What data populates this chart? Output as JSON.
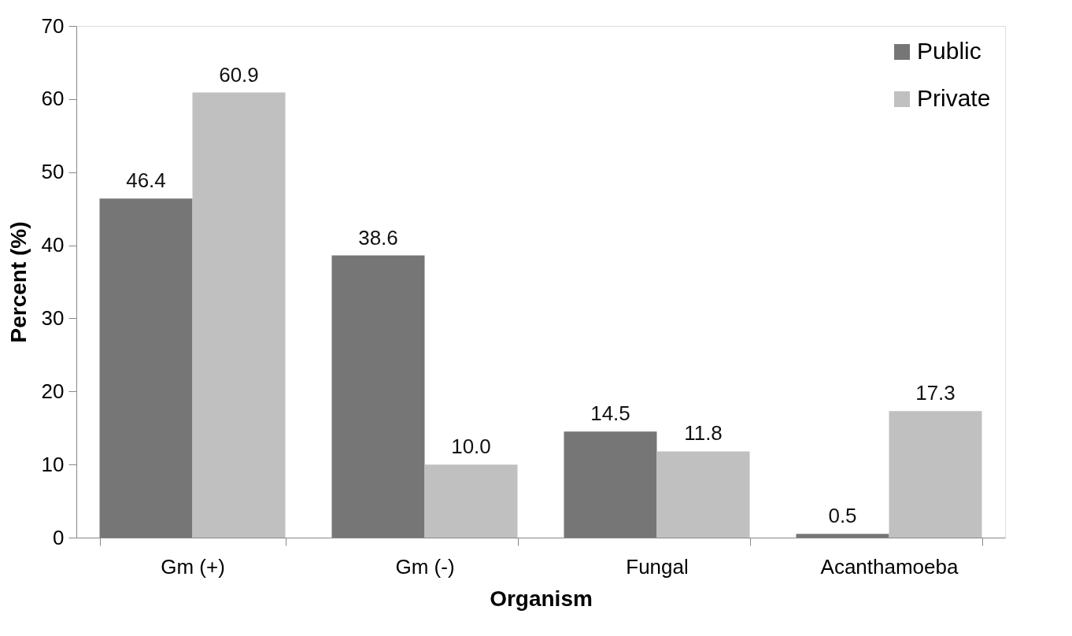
{
  "chart_data": {
    "type": "bar",
    "xlabel": "Organism",
    "ylabel": "Percent (%)",
    "categories": [
      "Gm (+)",
      "Gm (-)",
      "Fungal",
      "Acanthamoeba"
    ],
    "series": [
      {
        "name": "Public",
        "color": "#767676",
        "values": [
          46.4,
          38.6,
          14.5,
          0.5
        ],
        "value_labels": [
          "46.4",
          "38.6",
          "14.5",
          "0.5"
        ]
      },
      {
        "name": "Private",
        "color": "#c0c0c0",
        "values": [
          60.9,
          10.0,
          11.8,
          17.3
        ],
        "value_labels": [
          "60.9",
          "10.0",
          "11.8",
          "17.3"
        ]
      }
    ],
    "ylim": [
      0,
      70
    ],
    "yticks": [
      0,
      10,
      20,
      30,
      40,
      50,
      60,
      70
    ],
    "grid": false,
    "legend": "top right"
  }
}
